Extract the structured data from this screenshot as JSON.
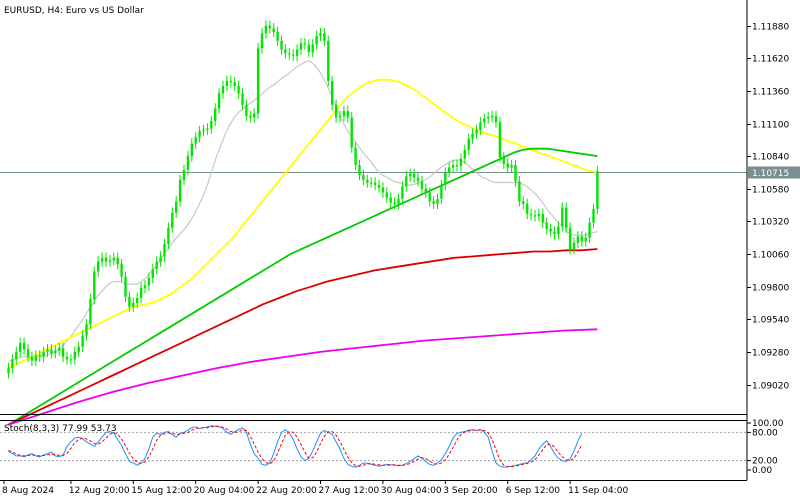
{
  "chart_data": {
    "type": "line",
    "title": "EURUSD, H4:  Euro vs US Dollar",
    "price_axis": {
      "ticks": [
        1.1188,
        1.1162,
        1.1136,
        1.111,
        1.1084,
        1.1058,
        1.1032,
        1.1006,
        1.098,
        1.0954,
        1.0928,
        1.0902
      ],
      "tick_labels": [
        "1.11880",
        "1.11620",
        "1.11360",
        "1.11100",
        "1.10840",
        "1.10580",
        "1.10320",
        "1.10060",
        "1.09800",
        "1.09540",
        "1.09280",
        "1.09020"
      ],
      "ylim": [
        1.08785,
        1.12085
      ],
      "current_price": 1.10715,
      "current_price_label": "1.10715",
      "current_price_color": "#ff2a2a"
    },
    "x_axis": {
      "labels": [
        "8 Aug 2024",
        "12 Aug 20:00",
        "15 Aug 12:00",
        "20 Aug 04:00",
        "22 Aug 20:00",
        "27 Aug 12:00",
        "30 Aug 04:00",
        "3 Sep 20:00",
        "6 Sep 12:00",
        "11 Sep 04:00"
      ],
      "label_bar_index": [
        0,
        16,
        32,
        48,
        64,
        80,
        96,
        112,
        128,
        144
      ]
    },
    "candles": {
      "up_color": "#00e600",
      "down_color": "#00e600",
      "closes": [
        1.0915,
        1.0922,
        1.0928,
        1.0935,
        1.093,
        1.0924,
        1.0921,
        1.0925,
        1.0924,
        1.0928,
        1.093,
        1.0927,
        1.0929,
        1.0931,
        1.0924,
        1.0922,
        1.0922,
        1.0928,
        1.0932,
        1.0941,
        1.095,
        1.097,
        1.0992,
        1.1,
        1.1003,
        1.1,
        1.1001,
        1.1003,
        1.0998,
        1.0988,
        1.0972,
        1.0964,
        1.0967,
        1.0971,
        1.0979,
        1.0981,
        1.0987,
        1.0994,
        1.1,
        1.1004,
        1.1014,
        1.1027,
        1.1039,
        1.1048,
        1.1065,
        1.1073,
        1.1084,
        1.1094,
        1.1099,
        1.1104,
        1.1105,
        1.1106,
        1.1112,
        1.1122,
        1.1134,
        1.114,
        1.1144,
        1.1143,
        1.114,
        1.1134,
        1.1125,
        1.1116,
        1.1115,
        1.1118,
        1.117,
        1.1182,
        1.1188,
        1.1186,
        1.1183,
        1.1176,
        1.1169,
        1.1166,
        1.1165,
        1.1164,
        1.1169,
        1.1174,
        1.1173,
        1.1167,
        1.1173,
        1.118,
        1.1182,
        1.1176,
        1.1144,
        1.1125,
        1.1115,
        1.1116,
        1.112,
        1.1115,
        1.1091,
        1.1077,
        1.1069,
        1.1065,
        1.1063,
        1.1063,
        1.1061,
        1.1059,
        1.1055,
        1.1051,
        1.1047,
        1.1046,
        1.105,
        1.106,
        1.1068,
        1.107,
        1.1067,
        1.1064,
        1.1058,
        1.1055,
        1.1048,
        1.1046,
        1.105,
        1.1061,
        1.1071,
        1.1075,
        1.1077,
        1.1076,
        1.1082,
        1.1089,
        1.1098,
        1.1102,
        1.1105,
        1.1111,
        1.1114,
        1.1115,
        1.1116,
        1.1111,
        1.1083,
        1.1078,
        1.1075,
        1.1077,
        1.1064,
        1.1048,
        1.1046,
        1.1038,
        1.1037,
        1.1036,
        1.1038,
        1.1031,
        1.1026,
        1.1024,
        1.1022,
        1.1028,
        1.1043,
        1.1027,
        1.101,
        1.1015,
        1.102,
        1.1016,
        1.1019,
        1.1031,
        1.1042,
        1.1072
      ],
      "range": 0.0012
    },
    "series": [
      {
        "name": "",
        "color": "#c8c8c8",
        "values": [
          1.092,
          1.0922,
          1.0923,
          1.0924,
          1.0924,
          1.0924,
          1.0925,
          1.0925,
          1.0925,
          1.0926,
          1.0927,
          1.0929,
          1.0932,
          1.0936,
          1.094,
          1.0945,
          1.095,
          1.0955,
          1.0961,
          1.0966,
          1.0972,
          1.0976,
          1.098,
          1.0983,
          1.0984,
          1.0984,
          1.0983,
          1.0982,
          1.0982,
          1.0982,
          1.0984,
          1.0987,
          1.0991,
          1.0995,
          1.1,
          1.1005,
          1.101,
          1.1015,
          1.1019,
          1.1023,
          1.1027,
          1.1032,
          1.1038,
          1.1045,
          1.1053,
          1.1062,
          1.1073,
          1.1084,
          1.1093,
          1.1102,
          1.1109,
          1.1115,
          1.1119,
          1.1122,
          1.1125,
          1.1127,
          1.113,
          1.1133,
          1.1136,
          1.1139,
          1.1141,
          1.1144,
          1.1147,
          1.1149,
          1.1152,
          1.1155,
          1.1157,
          1.1159,
          1.116,
          1.1157,
          1.1153,
          1.1147,
          1.114,
          1.1132,
          1.1123,
          1.1115,
          1.1108,
          1.1102,
          1.1097,
          1.1092,
          1.1087,
          1.1083,
          1.1079,
          1.1074,
          1.107,
          1.1068,
          1.1066,
          1.1064,
          1.1063,
          1.1062,
          1.1061,
          1.1061,
          1.1062,
          1.1063,
          1.1065,
          1.1067,
          1.107,
          1.1073,
          1.1076,
          1.1078,
          1.108,
          1.1081,
          1.1081,
          1.1079,
          1.1076,
          1.1073,
          1.107,
          1.1067,
          1.1066,
          1.1064,
          1.1063,
          1.1063,
          1.1063,
          1.1063,
          1.1063,
          1.1063,
          1.1062,
          1.106,
          1.1057,
          1.1054,
          1.105,
          1.1045,
          1.104,
          1.1036,
          1.1032,
          1.1028,
          1.1024,
          1.1022,
          1.1021,
          1.1021,
          1.1021,
          1.1022,
          1.1023,
          1.1024
        ]
      },
      {
        "name": "",
        "color": "#ffff00",
        "values": [
          1.0915,
          1.0917,
          1.0919,
          1.0921,
          1.0923,
          1.0925,
          1.0927,
          1.0929,
          1.0931,
          1.0933,
          1.0935,
          1.0937,
          1.0939,
          1.0941,
          1.0943,
          1.0945,
          1.0947,
          1.0949,
          1.0951,
          1.0953,
          1.0955,
          1.0957,
          1.0959,
          1.0961,
          1.0963,
          1.0964,
          1.0965,
          1.0966,
          1.0967,
          1.0968,
          1.097,
          1.0972,
          1.0974,
          1.0977,
          1.098,
          1.0983,
          1.0986,
          1.099,
          1.0994,
          1.0998,
          1.1002,
          1.1006,
          1.101,
          1.1014,
          1.1018,
          1.1023,
          1.1028,
          1.1033,
          1.1038,
          1.1043,
          1.1048,
          1.1053,
          1.1058,
          1.1063,
          1.1068,
          1.1073,
          1.1078,
          1.1083,
          1.1088,
          1.1093,
          1.1098,
          1.1103,
          1.1108,
          1.1113,
          1.1118,
          1.1123,
          1.1128,
          1.1132,
          1.1135,
          1.1138,
          1.1141,
          1.1143,
          1.1144,
          1.1145,
          1.1145,
          1.1145,
          1.1144,
          1.1143,
          1.1141,
          1.1139,
          1.1137,
          1.1134,
          1.1131,
          1.1128,
          1.1125,
          1.1122,
          1.1119,
          1.1116,
          1.1113,
          1.1111,
          1.1109,
          1.1107,
          1.1105,
          1.1104,
          1.1102,
          1.1101,
          1.11,
          1.1098,
          1.1097,
          1.1095,
          1.1094,
          1.1092,
          1.1091,
          1.1089,
          1.1088,
          1.1086,
          1.1085,
          1.1083,
          1.1082,
          1.108,
          1.1079,
          1.1077,
          1.1076,
          1.1074,
          1.1073,
          1.1072,
          1.1071
        ]
      },
      {
        "name": "",
        "color": "#00cc00",
        "values": [
          1.087,
          1.0874,
          1.0878,
          1.0882,
          1.0886,
          1.089,
          1.0894,
          1.0898,
          1.0902,
          1.0906,
          1.091,
          1.0914,
          1.0918,
          1.0922,
          1.0926,
          1.093,
          1.0934,
          1.0938,
          1.0942,
          1.0946,
          1.095,
          1.0954,
          1.0958,
          1.0962,
          1.0966,
          1.097,
          1.0974,
          1.0978,
          1.0982,
          1.0986,
          1.099,
          1.0994,
          1.0998,
          1.1002,
          1.1006,
          1.1009,
          1.1012,
          1.1015,
          1.1018,
          1.1021,
          1.1024,
          1.1027,
          1.103,
          1.1033,
          1.1036,
          1.1039,
          1.1042,
          1.1045,
          1.1048,
          1.1051,
          1.1054,
          1.1057,
          1.106,
          1.1063,
          1.1066,
          1.1069,
          1.1072,
          1.1075,
          1.1078,
          1.1081,
          1.1084,
          1.1087,
          1.1089,
          1.109,
          1.109,
          1.109,
          1.1089,
          1.1088,
          1.1087,
          1.1086,
          1.1085,
          1.1084
        ]
      },
      {
        "name": "",
        "color": "#dd0000",
        "values": [
          1.087,
          1.0876,
          1.0882,
          1.0888,
          1.0894,
          1.09,
          1.0906,
          1.0912,
          1.0918,
          1.0924,
          1.093,
          1.0936,
          1.0942,
          1.0948,
          1.0954,
          1.096,
          1.0966,
          1.0971,
          1.0976,
          1.098,
          1.0984,
          1.0987,
          1.099,
          1.0993,
          1.0995,
          1.0997,
          1.0999,
          1.1001,
          1.1003,
          1.1004,
          1.1005,
          1.1006,
          1.1007,
          1.1008,
          1.1008,
          1.1009,
          1.1009,
          1.101
        ]
      },
      {
        "name": "",
        "color": "#ee00ee",
        "values": [
          1.087,
          1.0879,
          1.0888,
          1.0896,
          1.0903,
          1.0909,
          1.0915,
          1.092,
          1.0924,
          1.0928,
          1.0931,
          1.0934,
          1.0937,
          1.0939,
          1.0941,
          1.0943,
          1.0945,
          1.0946
        ]
      }
    ],
    "oscillator": {
      "label": "Stoch(8,3,3) 77.99 53.73",
      "ticks": [
        100,
        80,
        20,
        0
      ],
      "tick_labels": [
        "100.00",
        "80.00",
        "20.00",
        "0.00"
      ],
      "main_color": "#1e90ff",
      "signal_color": "#ff0000",
      "main": [
        40,
        35,
        30,
        30,
        28,
        32,
        35,
        30,
        28,
        32,
        35,
        38,
        30,
        28,
        32,
        50,
        60,
        68,
        70,
        66,
        60,
        55,
        50,
        60,
        70,
        80,
        82,
        78,
        65,
        52,
        35,
        18,
        15,
        10,
        15,
        25,
        45,
        70,
        78,
        76,
        80,
        82,
        75,
        70,
        78,
        80,
        85,
        90,
        92,
        88,
        90,
        92,
        94,
        93,
        92,
        88,
        80,
        76,
        82,
        86,
        90,
        80,
        55,
        35,
        25,
        12,
        10,
        15,
        35,
        60,
        80,
        86,
        78,
        65,
        45,
        28,
        20,
        25,
        40,
        60,
        78,
        84,
        80,
        76,
        60,
        45,
        25,
        12,
        8,
        6,
        10,
        15,
        14,
        12,
        10,
        8,
        10,
        12,
        11,
        10,
        9,
        10,
        14,
        18,
        24,
        30,
        25,
        18,
        12,
        10,
        15,
        22,
        35,
        50,
        68,
        78,
        80,
        82,
        85,
        86,
        84,
        86,
        80,
        70,
        40,
        15,
        8,
        6,
        7,
        8,
        10,
        12,
        14,
        15,
        22,
        30,
        45,
        55,
        62,
        50,
        35,
        25,
        20,
        18,
        24,
        40,
        62,
        78
      ],
      "signal": [
        42,
        38,
        34,
        31,
        30,
        31,
        32,
        31,
        30,
        31,
        32,
        34,
        33,
        31,
        31,
        36,
        46,
        58,
        65,
        68,
        66,
        62,
        56,
        55,
        60,
        68,
        76,
        80,
        76,
        66,
        52,
        36,
        24,
        16,
        14,
        17,
        28,
        45,
        63,
        74,
        77,
        79,
        78,
        76,
        76,
        78,
        80,
        85,
        88,
        90,
        90,
        90,
        92,
        93,
        93,
        91,
        87,
        82,
        80,
        81,
        86,
        84,
        72,
        55,
        38,
        24,
        16,
        13,
        19,
        36,
        56,
        74,
        82,
        80,
        70,
        54,
        38,
        25,
        26,
        38,
        56,
        72,
        81,
        82,
        74,
        60,
        44,
        28,
        16,
        9,
        8,
        10,
        13,
        14,
        12,
        11,
        10,
        10,
        11,
        11,
        10,
        10,
        11,
        14,
        18,
        23,
        26,
        24,
        19,
        14,
        12,
        15,
        22,
        33,
        48,
        64,
        76,
        81,
        83,
        85,
        85,
        85,
        84,
        79,
        65,
        43,
        22,
        10,
        7,
        7,
        8,
        10,
        12,
        14,
        17,
        22,
        32,
        43,
        54,
        55,
        49,
        37,
        28,
        22,
        20,
        25,
        38,
        54
      ]
    }
  }
}
